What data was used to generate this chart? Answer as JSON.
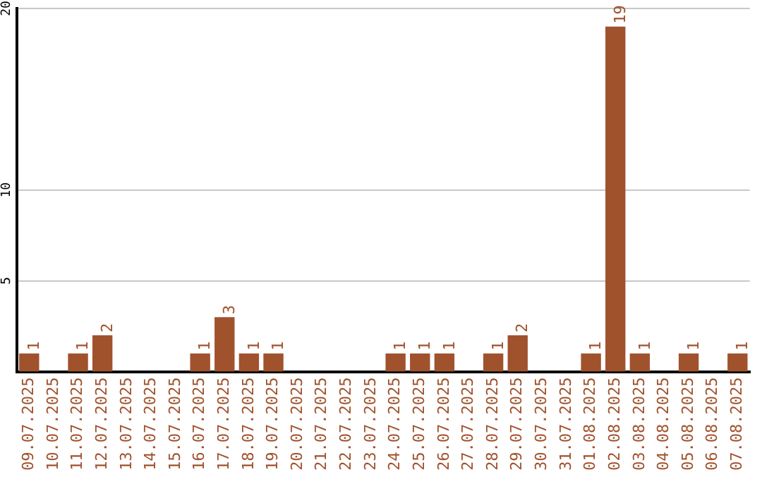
{
  "chart_data": {
    "type": "bar",
    "categories": [
      "09.07.2025",
      "10.07.2025",
      "11.07.2025",
      "12.07.2025",
      "13.07.2025",
      "14.07.2025",
      "15.07.2025",
      "16.07.2025",
      "17.07.2025",
      "18.07.2025",
      "19.07.2025",
      "20.07.2025",
      "21.07.2025",
      "22.07.2025",
      "23.07.2025",
      "24.07.2025",
      "25.07.2025",
      "26.07.2025",
      "27.07.2025",
      "28.07.2025",
      "29.07.2025",
      "30.07.2025",
      "31.07.2025",
      "01.08.2025",
      "02.08.2025",
      "03.08.2025",
      "04.08.2025",
      "05.08.2025",
      "06.08.2025",
      "07.08.2025"
    ],
    "values": [
      1,
      0,
      1,
      2,
      0,
      0,
      0,
      1,
      3,
      1,
      1,
      0,
      0,
      0,
      0,
      1,
      1,
      1,
      0,
      1,
      2,
      0,
      0,
      1,
      19,
      1,
      0,
      1,
      0,
      1
    ],
    "value_labels": [
      "1",
      null,
      "1",
      "2",
      null,
      null,
      null,
      "1",
      "3",
      "1",
      "1",
      null,
      null,
      null,
      null,
      "1",
      "1",
      "1",
      null,
      "1",
      "2",
      null,
      null,
      "1",
      "19",
      "1",
      null,
      "1",
      null,
      "1"
    ],
    "color": "#a0522d",
    "ylim": [
      0,
      20
    ],
    "yticks": [
      5,
      10,
      20
    ],
    "grid": "y",
    "legend": false
  }
}
